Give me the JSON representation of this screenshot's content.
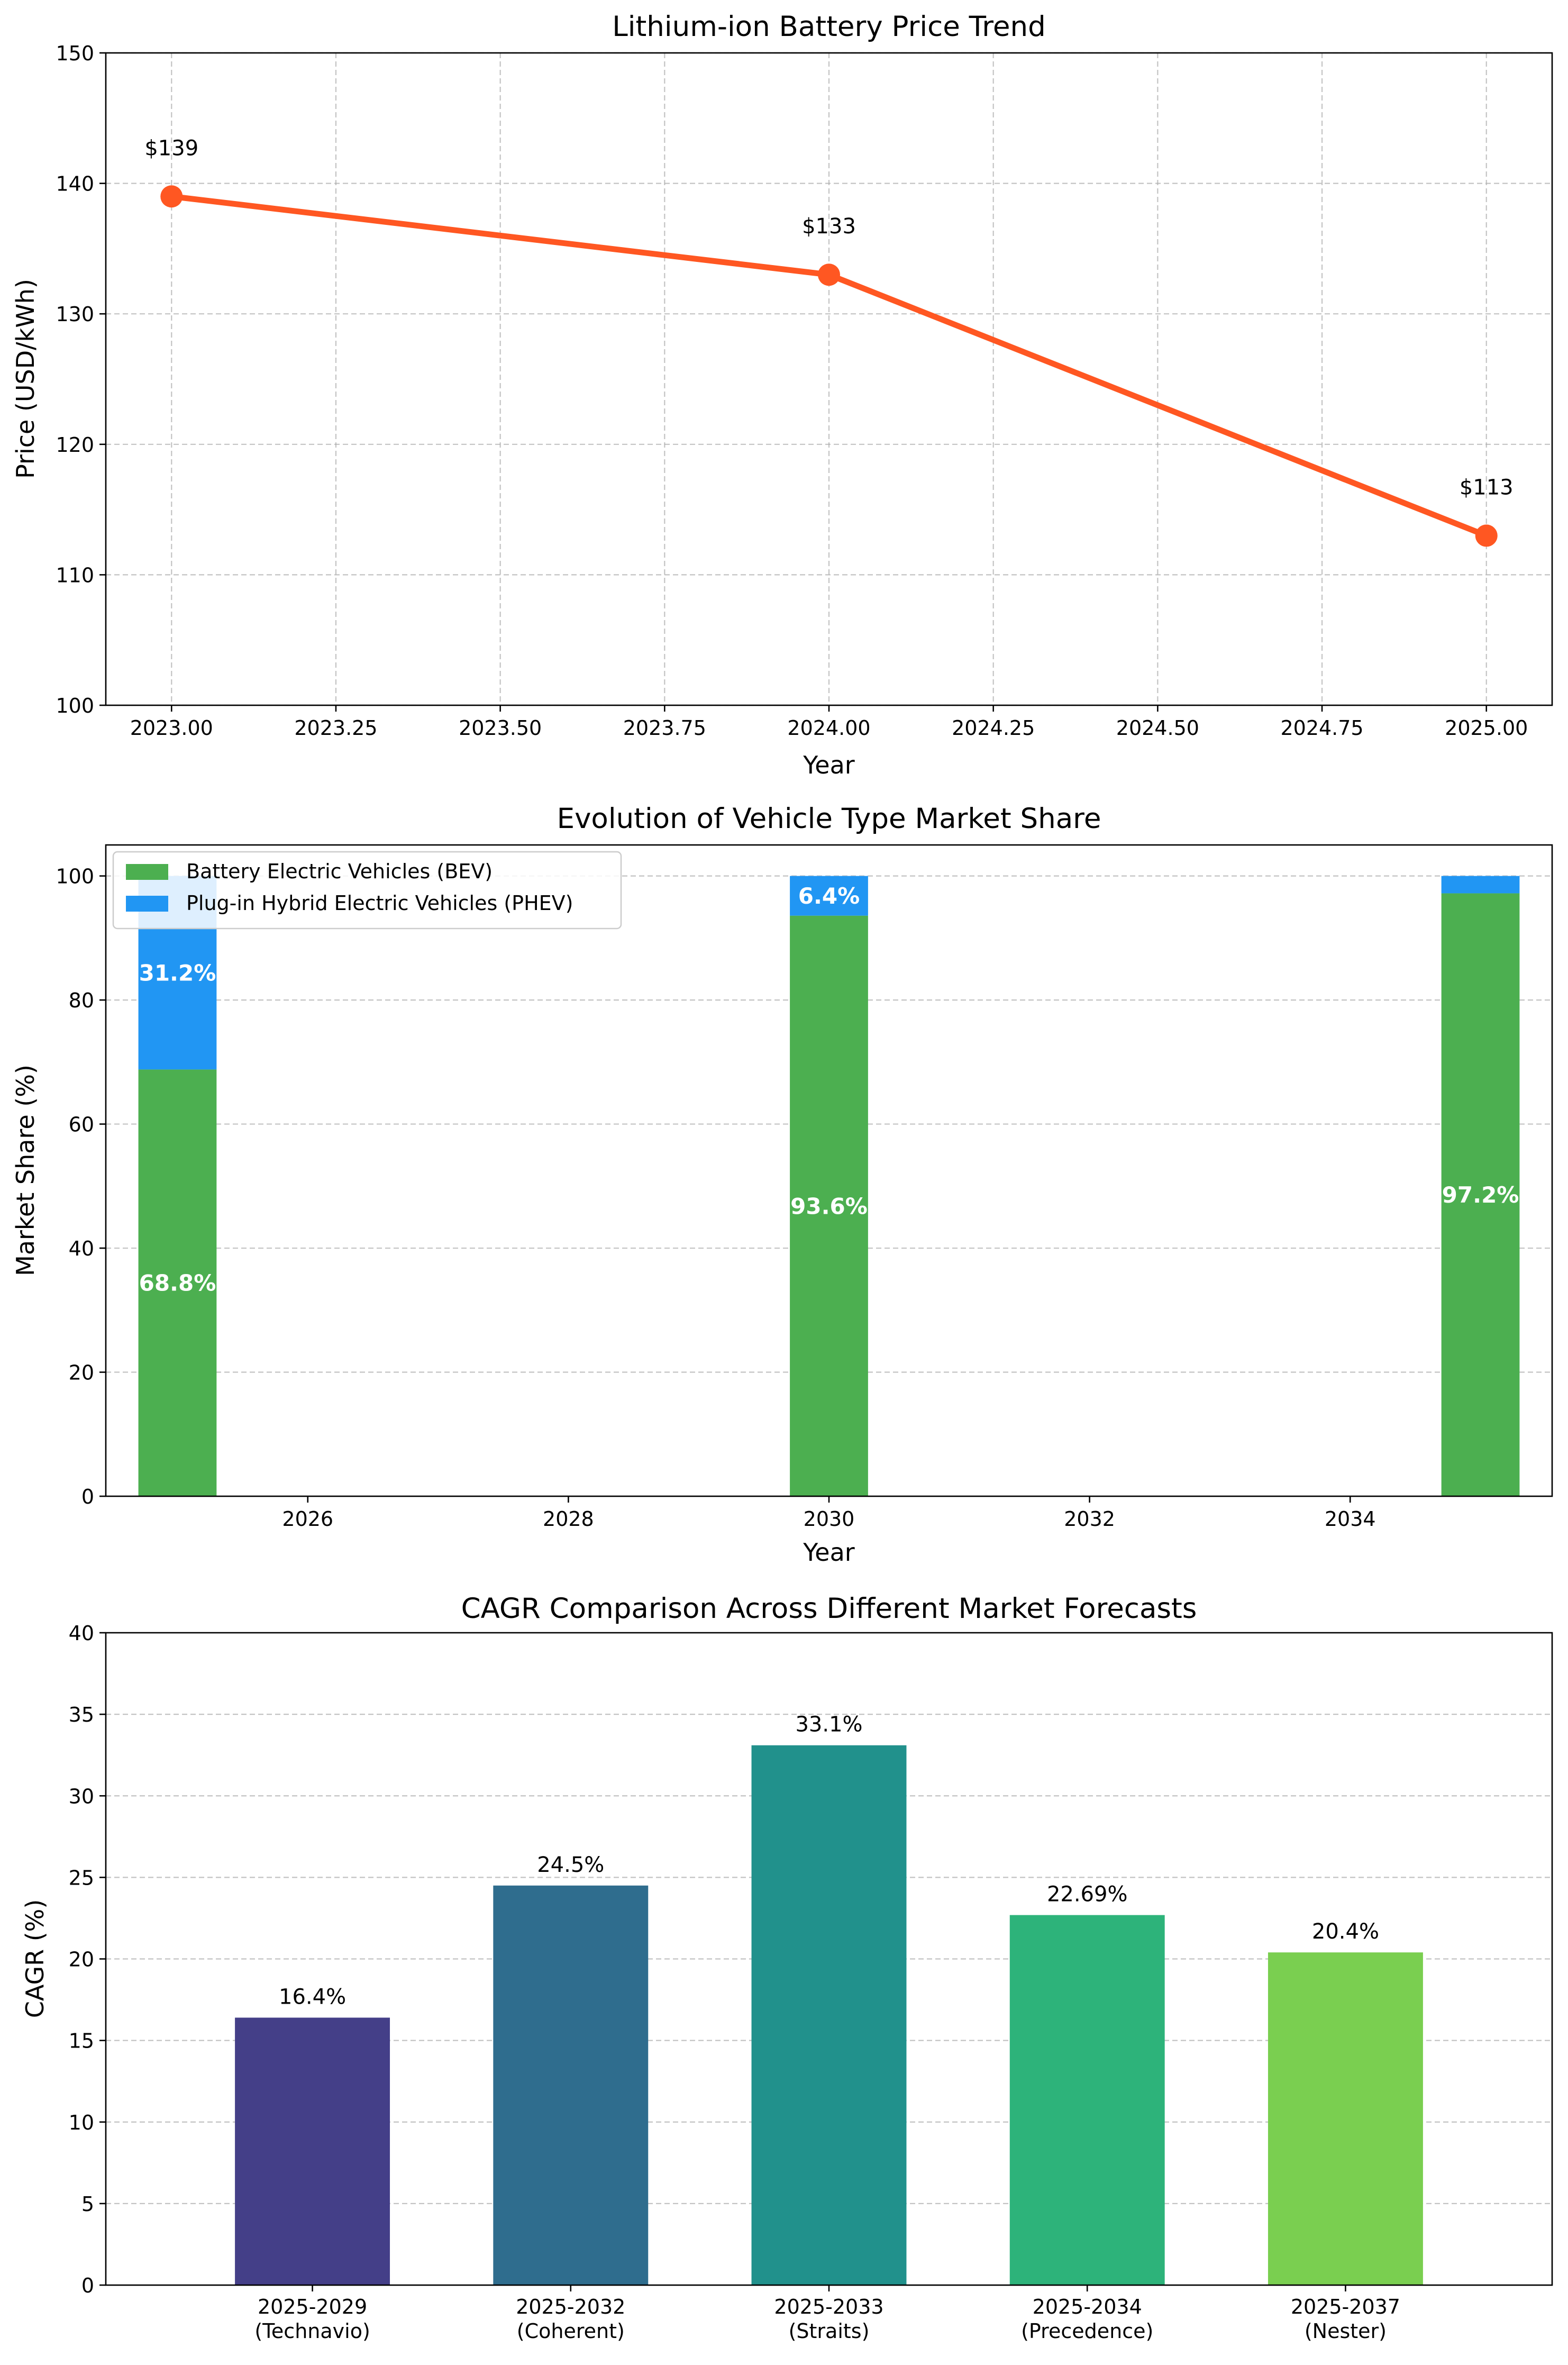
{
  "colors": {
    "line": "#FF5722",
    "bev": "#4CAF50",
    "phev": "#2196F3",
    "cagr_bars": [
      "#443F88",
      "#2F6D8E",
      "#21918C",
      "#2DB37A",
      "#7ACF50"
    ]
  },
  "chart_data": [
    {
      "type": "line",
      "title": "Lithium-ion Battery Price Trend",
      "xlabel": "Year",
      "ylabel": "Price (USD/kWh)",
      "x": [
        2023,
        2024,
        2025
      ],
      "values": [
        139,
        133,
        113
      ],
      "data_labels": [
        "$139",
        "$133",
        "$113"
      ],
      "xlim": [
        2022.9,
        2025.1
      ],
      "ylim": [
        100,
        150
      ],
      "xticks": [
        "2023.00",
        "2023.25",
        "2023.50",
        "2023.75",
        "2024.00",
        "2024.25",
        "2024.50",
        "2024.75",
        "2025.00"
      ],
      "xtick_values": [
        2023.0,
        2023.25,
        2023.5,
        2023.75,
        2024.0,
        2024.25,
        2024.5,
        2024.75,
        2025.0
      ],
      "yticks": [
        100,
        110,
        120,
        130,
        140,
        150
      ],
      "grid": true,
      "marker": "circle"
    },
    {
      "type": "bar",
      "stacked": true,
      "title": "Evolution of Vehicle Type Market Share",
      "xlabel": "Year",
      "ylabel": "Market Share (%)",
      "x": [
        2025,
        2030,
        2035
      ],
      "series": [
        {
          "name": "Battery Electric Vehicles (BEV)",
          "values": [
            68.8,
            93.6,
            97.2
          ],
          "labels": [
            "68.8%",
            "93.6%",
            "97.2%"
          ]
        },
        {
          "name": "Plug-in Hybrid Electric Vehicles (PHEV)",
          "values": [
            31.2,
            6.4,
            2.8
          ],
          "labels": [
            "31.2%",
            "6.4%",
            ""
          ]
        }
      ],
      "bar_width": 0.6,
      "xlim": [
        24.45,
        35.55
      ],
      "xticks": [
        2026,
        2028,
        2030,
        2032,
        2034
      ],
      "ylim": [
        0,
        105
      ],
      "yticks": [
        0,
        20,
        40,
        60,
        80,
        100
      ],
      "legend": "top-left",
      "grid": "y"
    },
    {
      "type": "bar",
      "title": "CAGR Comparison Across Different Market Forecasts",
      "xlabel": "",
      "ylabel": "CAGR (%)",
      "categories": [
        [
          "2025-2029",
          "(Technavio)"
        ],
        [
          "2025-2032",
          "(Coherent)"
        ],
        [
          "2025-2033",
          "(Straits)"
        ],
        [
          "2025-2034",
          "(Precedence)"
        ],
        [
          "2025-2037",
          "(Nester)"
        ]
      ],
      "values": [
        16.4,
        24.5,
        33.1,
        22.69,
        20.4
      ],
      "data_labels": [
        "16.4%",
        "24.5%",
        "33.1%",
        "22.69%",
        "20.4%"
      ],
      "ylim": [
        0,
        40
      ],
      "yticks": [
        0,
        5,
        10,
        15,
        20,
        25,
        30,
        35,
        40
      ],
      "grid": "y"
    }
  ]
}
